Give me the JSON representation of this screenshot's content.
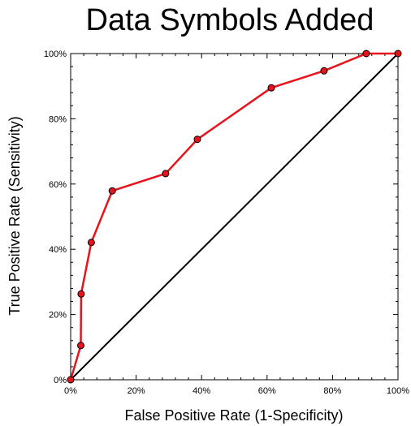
{
  "chart_data": {
    "type": "line",
    "title": "Data Symbols Added",
    "xlabel": "False Positive Rate (1-Specificity)",
    "ylabel": "True Positive Rate (Sensitivity)",
    "xlim": [
      0,
      1
    ],
    "ylim": [
      0,
      1
    ],
    "x_ticks": [
      {
        "value": 0,
        "label": "0%"
      },
      {
        "value": 0.2,
        "label": "20%"
      },
      {
        "value": 0.4,
        "label": "40%"
      },
      {
        "value": 0.6,
        "label": "60%"
      },
      {
        "value": 0.8,
        "label": "80%"
      },
      {
        "value": 1,
        "label": "100%"
      }
    ],
    "y_ticks": [
      {
        "value": 0,
        "label": "0%"
      },
      {
        "value": 0.2,
        "label": "20%"
      },
      {
        "value": 0.4,
        "label": "40%"
      },
      {
        "value": 0.6,
        "label": "60%"
      },
      {
        "value": 0.8,
        "label": "80%"
      },
      {
        "value": 1,
        "label": "100%"
      }
    ],
    "grid": false,
    "series": [
      {
        "color": "#e8121b",
        "marker_fill": "#e8121b",
        "marker_stroke": "#000000",
        "x": [
          0,
          0.031,
          0.032,
          0.063,
          0.127,
          0.29,
          0.387,
          0.613,
          0.774,
          0.903,
          1.0
        ],
        "y": [
          0,
          0.105,
          0.263,
          0.421,
          0.579,
          0.632,
          0.737,
          0.895,
          0.947,
          1.0,
          1.0
        ]
      }
    ],
    "reference_line": {
      "color": "#000000",
      "x": [
        0,
        1
      ],
      "y": [
        0,
        1
      ]
    }
  }
}
